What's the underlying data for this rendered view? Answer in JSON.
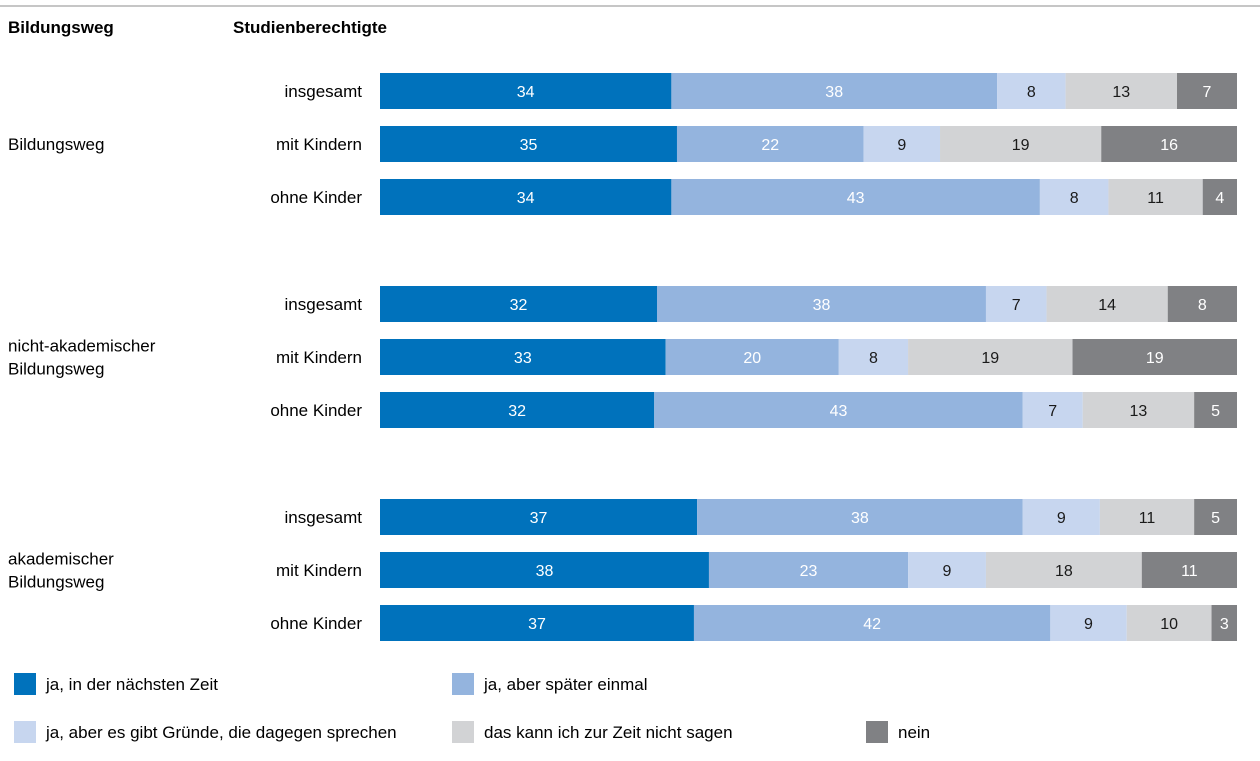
{
  "header": {
    "col1": "Bildungsweg",
    "col2": "Studienberechtigte"
  },
  "chart_data": {
    "type": "bar",
    "orientation": "horizontal",
    "stacked": true,
    "unit": "percent",
    "xlim": [
      0,
      100
    ],
    "groups": [
      {
        "label": [
          "Bildungsweg"
        ],
        "rows": [
          {
            "label": "insgesamt",
            "values": [
              34,
              38,
              8,
              13,
              7
            ]
          },
          {
            "label": "mit Kindern",
            "values": [
              35,
              22,
              9,
              19,
              16
            ]
          },
          {
            "label": "ohne Kinder",
            "values": [
              34,
              43,
              8,
              11,
              4
            ]
          }
        ]
      },
      {
        "label": [
          "nicht-akademischer",
          "Bildungsweg"
        ],
        "rows": [
          {
            "label": "insgesamt",
            "values": [
              32,
              38,
              7,
              14,
              8
            ]
          },
          {
            "label": "mit Kindern",
            "values": [
              33,
              20,
              8,
              19,
              19
            ]
          },
          {
            "label": "ohne Kinder",
            "values": [
              32,
              43,
              7,
              13,
              5
            ]
          }
        ]
      },
      {
        "label": [
          "akademischer",
          "Bildungsweg"
        ],
        "rows": [
          {
            "label": "insgesamt",
            "values": [
              37,
              38,
              9,
              11,
              5
            ]
          },
          {
            "label": "mit Kindern",
            "values": [
              38,
              23,
              9,
              18,
              11
            ]
          },
          {
            "label": "ohne Kinder",
            "values": [
              37,
              42,
              9,
              10,
              3
            ]
          }
        ]
      }
    ],
    "series": [
      {
        "name": "ja, in der nächsten Zeit",
        "color": "#0072bc",
        "text_color": "#ffffff"
      },
      {
        "name": "ja, aber später einmal",
        "color": "#94b4de",
        "text_color": "#ffffff"
      },
      {
        "name": "ja, aber es gibt Gründe, die dagegen sprechen",
        "color": "#c7d6ef",
        "text_color": "#1a1a1a"
      },
      {
        "name": "das kann ich zur Zeit nicht sagen",
        "color": "#d2d3d5",
        "text_color": "#1a1a1a"
      },
      {
        "name": "nein",
        "color": "#808184",
        "text_color": "#ffffff"
      }
    ],
    "legend_position": "bottom",
    "grid": false
  }
}
